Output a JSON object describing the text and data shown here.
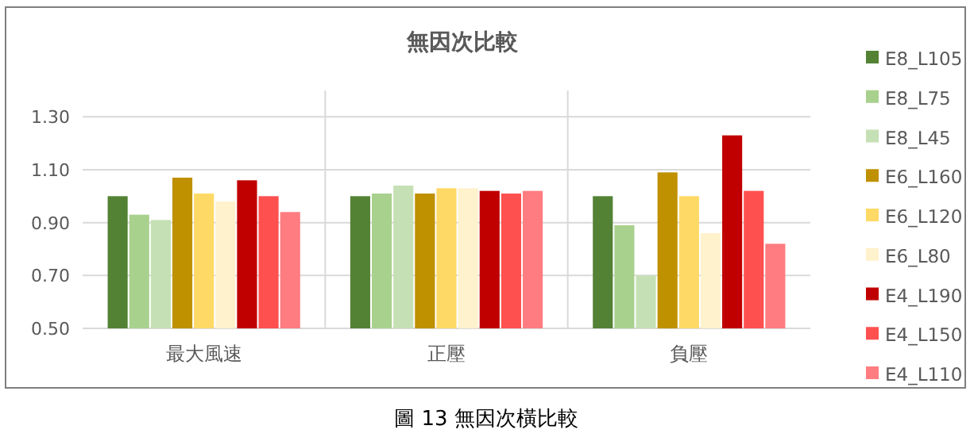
{
  "chart_data": {
    "type": "bar",
    "title": "無因次比較",
    "categories": [
      "最大風速",
      "正壓",
      "負壓"
    ],
    "series": [
      {
        "name": "E8_L105",
        "color": "#548235",
        "values": [
          1.0,
          1.0,
          1.0
        ]
      },
      {
        "name": "E8_L75",
        "color": "#a9d18e",
        "values": [
          0.93,
          1.01,
          0.89
        ]
      },
      {
        "name": "E8_L45",
        "color": "#c5e0b4",
        "values": [
          0.91,
          1.04,
          0.7
        ]
      },
      {
        "name": "E6_L160",
        "color": "#bf9000",
        "values": [
          1.07,
          1.01,
          1.09
        ]
      },
      {
        "name": "E6_L120",
        "color": "#ffd966",
        "values": [
          1.01,
          1.03,
          1.0
        ]
      },
      {
        "name": "E6_L80",
        "color": "#fff2cc",
        "values": [
          0.98,
          1.03,
          0.86
        ]
      },
      {
        "name": "E4_L190",
        "color": "#c00000",
        "values": [
          1.06,
          1.02,
          1.23
        ]
      },
      {
        "name": "E4_L150",
        "color": "#ff5050",
        "values": [
          1.0,
          1.01,
          1.02
        ]
      },
      {
        "name": "E4_L110",
        "color": "#ff7c80",
        "values": [
          0.94,
          1.02,
          0.82
        ]
      }
    ],
    "ylim": [
      0.5,
      1.4
    ],
    "yticks": [
      {
        "value": 0.5,
        "label": "0.50"
      },
      {
        "value": 0.7,
        "label": "0.70"
      },
      {
        "value": 0.9,
        "label": "0.90"
      },
      {
        "value": 1.1,
        "label": "1.10"
      },
      {
        "value": 1.3,
        "label": "1.30"
      }
    ],
    "grid": "y",
    "legend": "right",
    "annotations": [
      "圖 13  無因次橫比較"
    ]
  }
}
